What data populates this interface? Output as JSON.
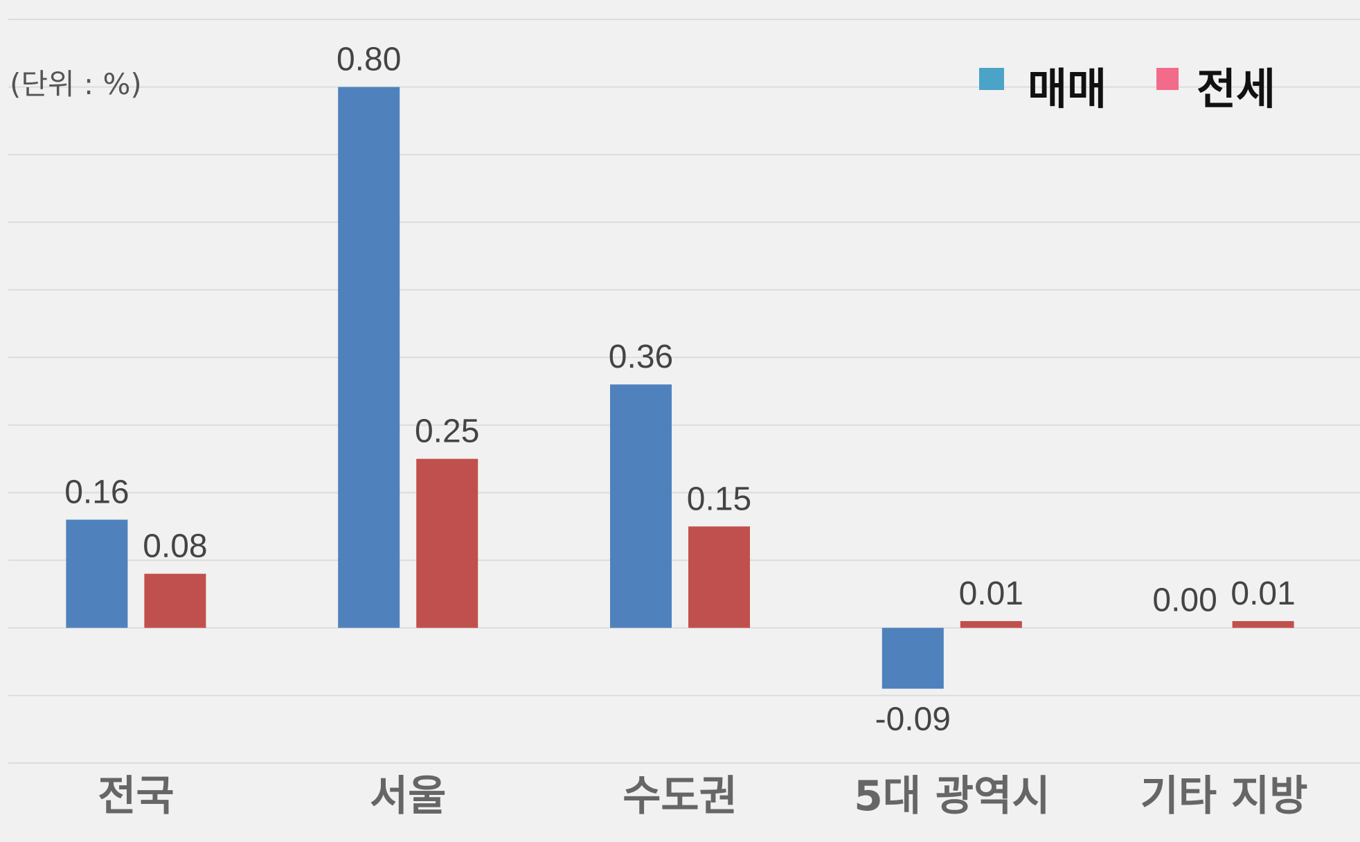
{
  "unit_label": "(단위 : %)",
  "legend": [
    {
      "label": "매매",
      "color": "#4BA3C7"
    },
    {
      "label": "전세",
      "color": "#F26B8A"
    }
  ],
  "chart_data": {
    "type": "bar",
    "categories": [
      "전국",
      "서울",
      "수도권",
      "5대 광역시",
      "기타 지방"
    ],
    "series": [
      {
        "name": "매매",
        "values": [
          0.16,
          0.8,
          0.36,
          -0.09,
          0.0
        ],
        "labels": [
          "0.16",
          "0.80",
          "0.36",
          "-0.09",
          "0.00"
        ],
        "color": "#4F81BD"
      },
      {
        "name": "전세",
        "values": [
          0.08,
          0.25,
          0.15,
          0.01,
          0.01
        ],
        "labels": [
          "0.08",
          "0.25",
          "0.15",
          "0.01",
          "0.01"
        ],
        "color": "#C0504D"
      }
    ],
    "ylim": [
      -0.2,
      0.9
    ],
    "grid": true,
    "legend_position": "top-right",
    "title": "",
    "xlabel": "",
    "ylabel": ""
  }
}
